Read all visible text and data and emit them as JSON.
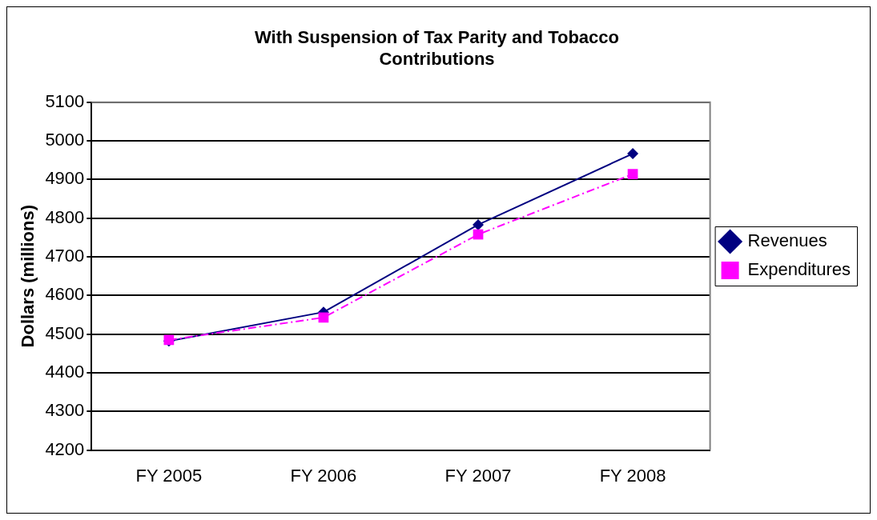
{
  "chart_data": {
    "type": "line",
    "title": "With Suspension of Tax Parity and Tobacco Contributions",
    "ylabel": "Dollars (millions)",
    "categories": [
      "FY 2005",
      "FY 2006",
      "FY 2007",
      "FY 2008"
    ],
    "series": [
      {
        "name": "Revenues",
        "color": "#000080",
        "values": [
          4482,
          4557,
          4783,
          4967
        ],
        "marker": "diamond",
        "line_style": "solid"
      },
      {
        "name": "Expenditures",
        "color": "#ff00ff",
        "values": [
          4485,
          4543,
          4758,
          4914
        ],
        "marker": "square",
        "line_style": "dashed"
      }
    ],
    "ylim": [
      4200,
      5100
    ],
    "yticks": [
      4200,
      4300,
      4400,
      4500,
      4600,
      4700,
      4800,
      4900,
      5000,
      5100
    ],
    "grid": "y",
    "legend": "right"
  }
}
